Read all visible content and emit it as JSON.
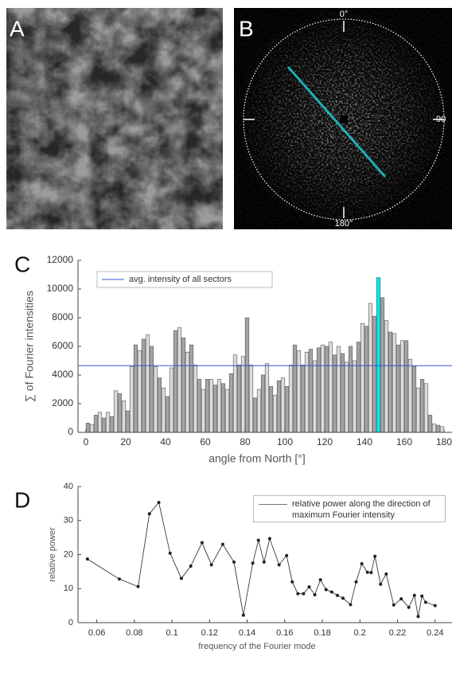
{
  "panel_labels": [
    "A",
    "B",
    "C",
    "D"
  ],
  "fft_labels": [
    "0°",
    "90",
    "180°"
  ],
  "chart_data": [
    {
      "type": "bar",
      "ylabel": "∑ of Fourier intensities",
      "xlabel": "angle from North [°]",
      "x": [
        1,
        3,
        5,
        7,
        9,
        11,
        13,
        15,
        17,
        19,
        21,
        23,
        25,
        27,
        29,
        31,
        33,
        35,
        37,
        39,
        41,
        43,
        45,
        47,
        49,
        51,
        53,
        55,
        57,
        59,
        61,
        63,
        65,
        67,
        69,
        71,
        73,
        75,
        77,
        79,
        81,
        83,
        85,
        87,
        89,
        91,
        93,
        95,
        97,
        99,
        101,
        103,
        105,
        107,
        109,
        111,
        113,
        115,
        117,
        119,
        121,
        123,
        125,
        127,
        129,
        131,
        133,
        135,
        137,
        139,
        141,
        143,
        145,
        147,
        149,
        151,
        153,
        155,
        157,
        159,
        161,
        163,
        165,
        167,
        169,
        171,
        173,
        175,
        177,
        179
      ],
      "values": [
        650,
        550,
        1200,
        1400,
        1000,
        1400,
        1100,
        2900,
        2700,
        2200,
        1500,
        4600,
        6100,
        5700,
        6500,
        6800,
        6000,
        4600,
        3800,
        3100,
        2500,
        4500,
        7100,
        7300,
        6600,
        5600,
        6100,
        4700,
        3700,
        3000,
        3700,
        3700,
        3300,
        3700,
        3400,
        3000,
        4100,
        5400,
        4700,
        5300,
        8000,
        4700,
        2400,
        3000,
        4000,
        4800,
        3200,
        2600,
        3600,
        3800,
        3200,
        4700,
        6100,
        5700,
        4700,
        5600,
        5800,
        5000,
        5900,
        6100,
        6000,
        6300,
        5400,
        6000,
        5500,
        4900,
        6000,
        5000,
        6300,
        7600,
        7400,
        9000,
        8100,
        null,
        9400,
        7800,
        7000,
        6900,
        6100,
        6400,
        6400,
        5100,
        4600,
        3100,
        3700,
        3400,
        1200,
        600,
        500,
        400
      ],
      "colors": [
        "#a4a4a4",
        "#dcdcdc"
      ],
      "highlight": {
        "x": 147,
        "value": 10800,
        "color": "#00eaf2"
      },
      "avg_line": {
        "name": "avg. intensity of all sectors",
        "value": 4650,
        "color": "#3a55d8"
      },
      "xlim": [
        -4,
        184
      ],
      "ylim": [
        0,
        12000
      ],
      "xticks": [
        0,
        20,
        40,
        60,
        80,
        100,
        120,
        140,
        160,
        180
      ],
      "yticks": [
        0,
        2000,
        4000,
        6000,
        8000,
        10000,
        12000
      ]
    },
    {
      "type": "line",
      "ylabel": "relative power",
      "xlabel": "frequency of the Fourier mode",
      "x": [
        0.055,
        0.072,
        0.082,
        0.088,
        0.093,
        0.099,
        0.105,
        0.11,
        0.116,
        0.121,
        0.127,
        0.133,
        0.138,
        0.143,
        0.146,
        0.149,
        0.152,
        0.157,
        0.161,
        0.164,
        0.167,
        0.17,
        0.173,
        0.176,
        0.179,
        0.182,
        0.185,
        0.188,
        0.191,
        0.195,
        0.198,
        0.201,
        0.204,
        0.206,
        0.208,
        0.211,
        0.214,
        0.218,
        0.222,
        0.226,
        0.229,
        0.231,
        0.233,
        0.235,
        0.24
      ],
      "series": [
        {
          "name": "relative power along the direction of maximum Fourier intensity",
          "color": "#222222",
          "values": [
            18.7,
            12.8,
            10.6,
            32,
            35.3,
            20.4,
            13,
            16.6,
            23.5,
            17,
            23,
            17.8,
            2.2,
            17.5,
            24.2,
            17.8,
            24.7,
            17,
            19.7,
            12,
            8.5,
            8.5,
            10.5,
            8.2,
            12.6,
            9.7,
            9,
            8,
            7.2,
            5.3,
            12,
            17.3,
            14.8,
            14.7,
            19.5,
            11.3,
            14.3,
            5.2,
            7,
            4.5,
            8,
            1.8,
            7.8,
            6,
            5
          ]
        }
      ],
      "xlim": [
        0.05,
        0.249
      ],
      "ylim": [
        0,
        40
      ],
      "xticks": [
        0.06,
        0.08,
        0.1,
        0.12,
        0.14,
        0.16,
        0.18,
        0.2,
        0.22,
        0.24
      ],
      "yticks": [
        0,
        10,
        20,
        30,
        40
      ]
    }
  ]
}
